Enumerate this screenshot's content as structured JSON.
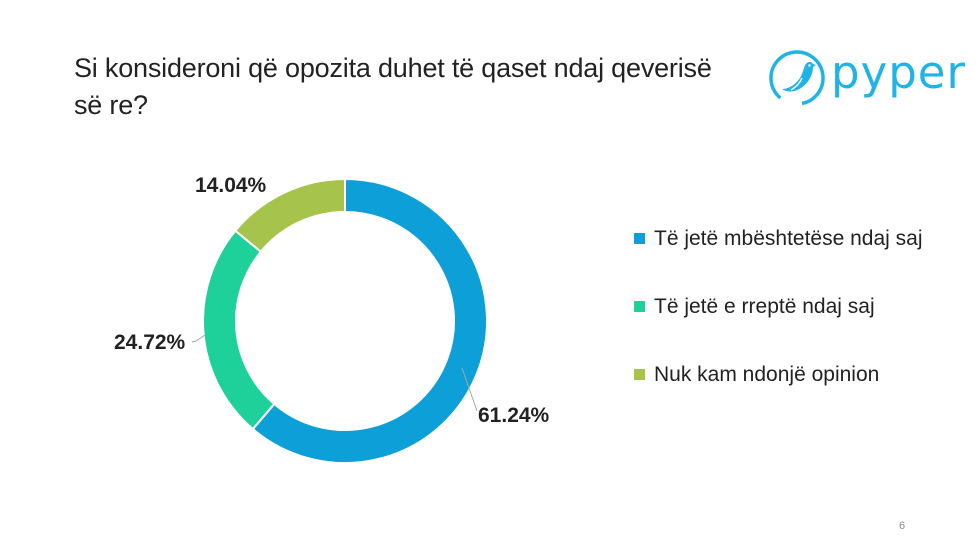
{
  "slide": {
    "title": "Si konsideroni që opozita duhet të qaset ndaj qeverisë së re?",
    "page_number": "6"
  },
  "logo": {
    "text": "pyper",
    "icon": "bird-icon",
    "color": "#1fb3e6"
  },
  "chart_data": {
    "type": "pie",
    "donut": true,
    "categories": [
      "Të jetë mbështetëse ndaj saj",
      "Të jetë e rreptë ndaj saj",
      "Nuk kam ndonjë opinion"
    ],
    "values": [
      61.24,
      24.72,
      14.04
    ],
    "value_labels": [
      "61.24%",
      "24.72%",
      "14.04%"
    ],
    "colors": [
      "#0d9fd8",
      "#1ed19a",
      "#a6c34b"
    ],
    "legend_position": "right"
  }
}
